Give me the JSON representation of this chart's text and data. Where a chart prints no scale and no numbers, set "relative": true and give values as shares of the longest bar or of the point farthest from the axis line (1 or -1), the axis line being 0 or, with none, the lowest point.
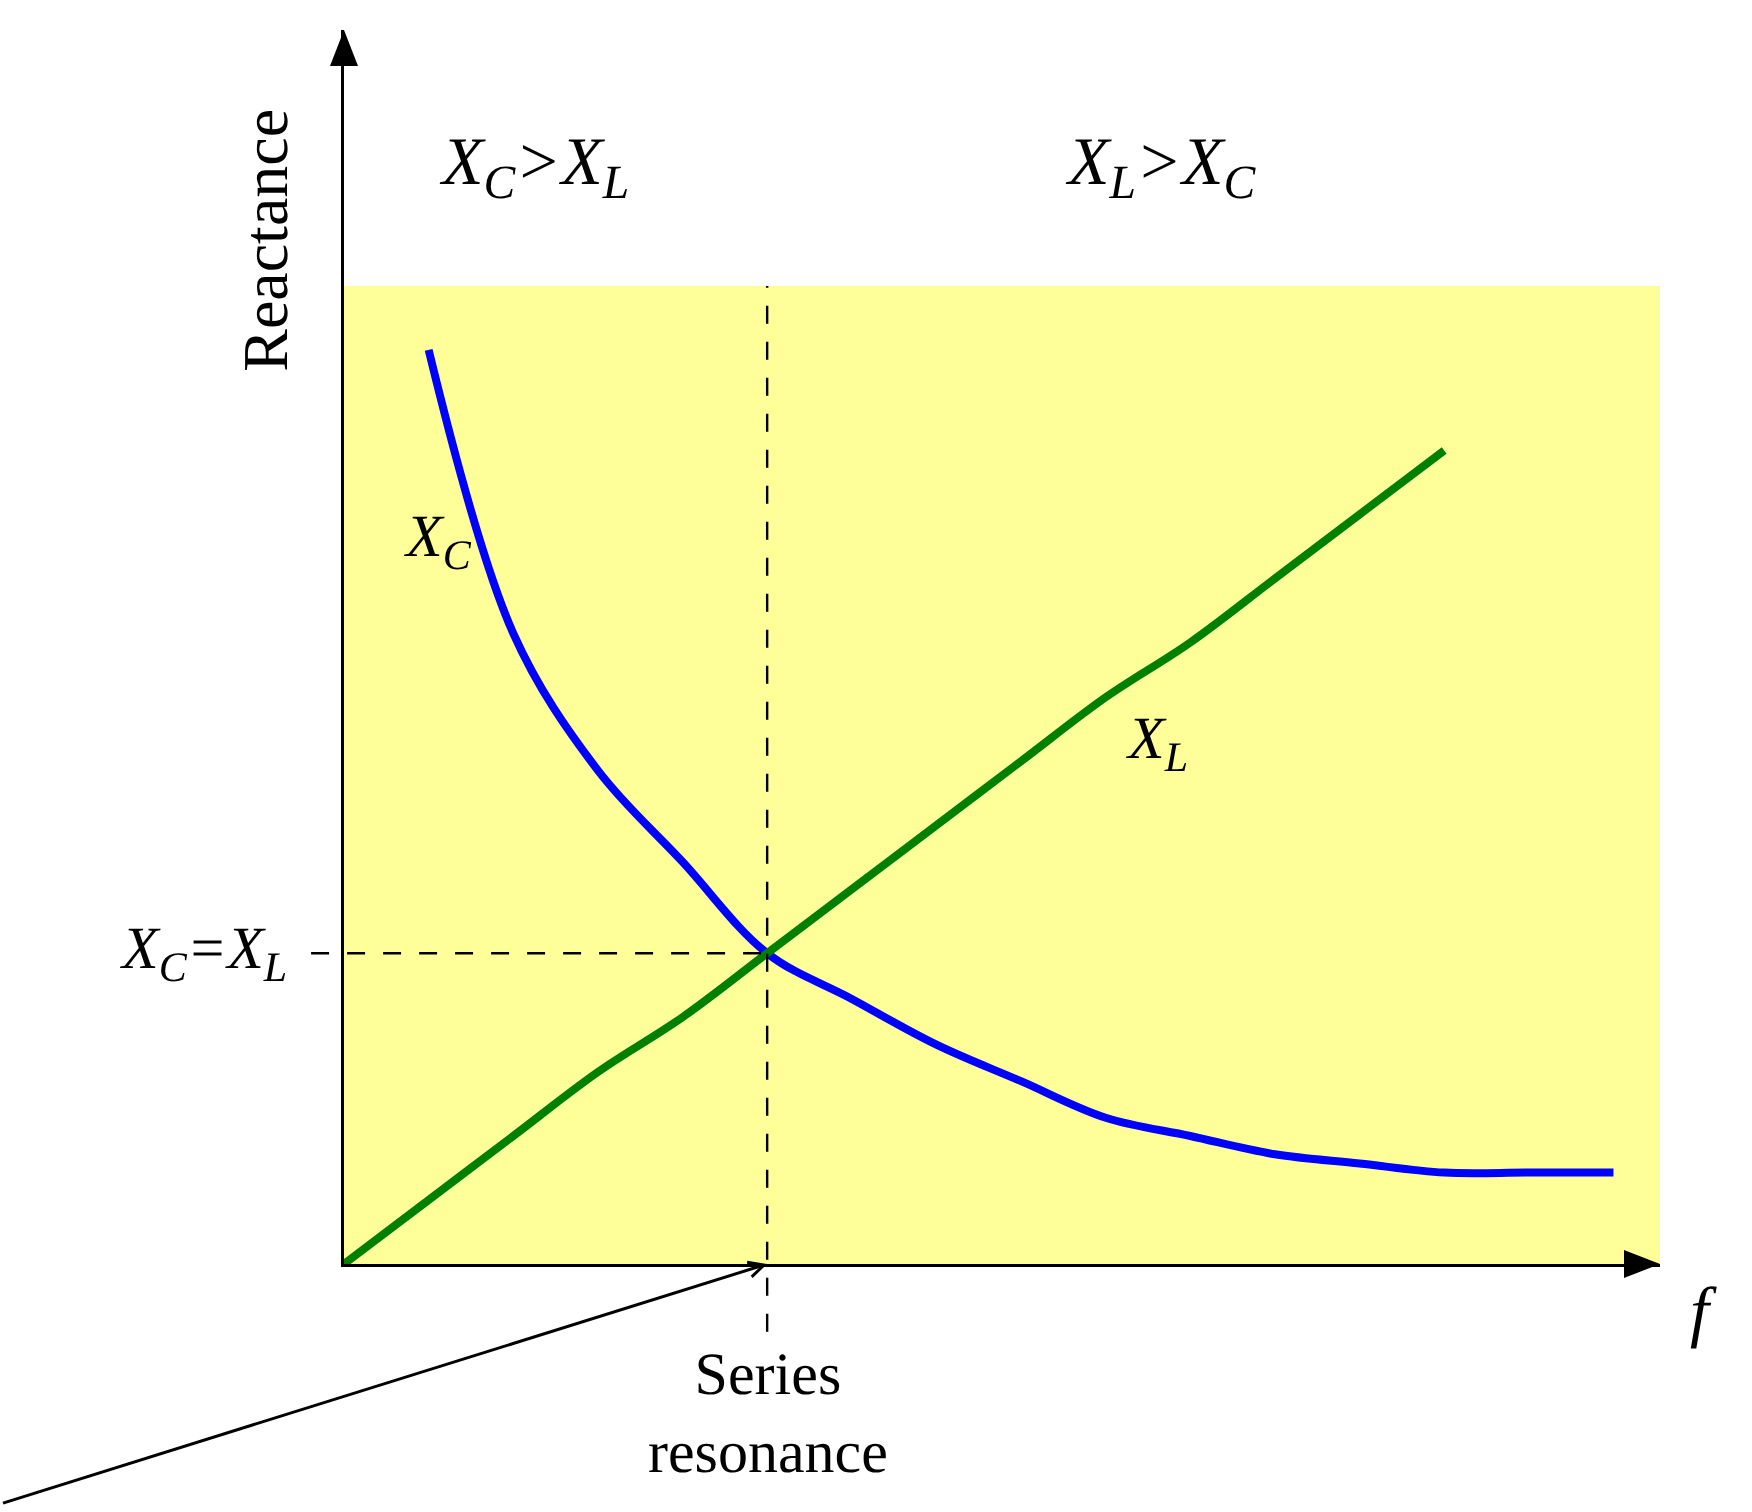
{
  "chart_data": {
    "type": "line",
    "relative": true,
    "xlabel": "f",
    "ylabel": "Reactance",
    "categories": [
      null,
      null,
      null,
      null,
      null,
      null,
      null,
      null,
      null,
      null,
      null,
      null,
      null,
      null,
      null,
      null
    ],
    "series": [
      {
        "name": "X$_{C}$",
        "color": "#0000ff",
        "values": [
          null,
          1,
          0.69,
          0.54,
          0.44,
          0.34,
          0.29,
          0.24,
          0.2,
          0.16,
          0.14,
          0.12,
          0.11,
          0.1,
          0.1,
          0.1
        ]
      },
      {
        "name": "X$_{L}$",
        "color": "#008000",
        "values": [
          0,
          0.07,
          0.14,
          0.21,
          0.27,
          0.34,
          0.41,
          0.48,
          0.55,
          0.62,
          0.68,
          0.75,
          0.82,
          0.89,
          null,
          null
        ]
      }
    ],
    "ref_lines": [
      {
        "axis": "y",
        "value": 0.34,
        "label": "X$_{C}$=X$_{L}$",
        "line_style": "dashed",
        "color": "#000000"
      }
    ],
    "annotations": [
      "X$_{C}$>X$_{L}$",
      "X$_{L}$>X$_{C}$",
      "Series resonance"
    ],
    "grid": false,
    "legend": false,
    "marker": "none",
    "line_style": "solid"
  }
}
